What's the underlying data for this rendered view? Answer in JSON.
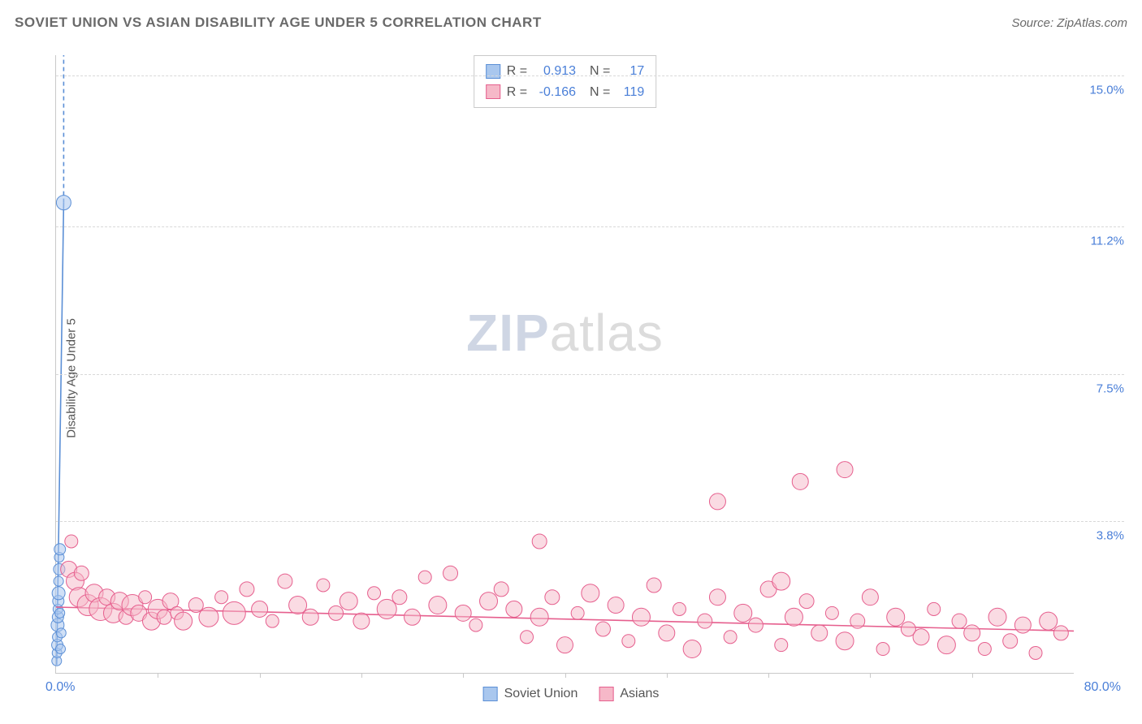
{
  "title": "SOVIET UNION VS ASIAN DISABILITY AGE UNDER 5 CORRELATION CHART",
  "source": "Source: ZipAtlas.com",
  "ylabel": "Disability Age Under 5",
  "watermark_bold": "ZIP",
  "watermark_rest": "atlas",
  "chart": {
    "type": "scatter",
    "background_color": "#ffffff",
    "grid_color": "#d8d8d8",
    "axis_color": "#c9c9c9",
    "tick_label_color": "#4a7fd8",
    "xlim": [
      0,
      80
    ],
    "ylim": [
      0,
      15.5
    ],
    "x_origin_label": "0.0%",
    "x_max_label": "80.0%",
    "y_ticks": [
      {
        "v": 3.8,
        "label": "3.8%"
      },
      {
        "v": 7.5,
        "label": "7.5%"
      },
      {
        "v": 11.2,
        "label": "11.2%"
      },
      {
        "v": 15.0,
        "label": "15.0%"
      }
    ],
    "x_minor_tick_step": 8,
    "series": [
      {
        "name": "Soviet Union",
        "fill": "#a9c7ee",
        "stroke": "#5b8fd6",
        "fill_opacity": 0.55,
        "R": "0.913",
        "N": "17",
        "trend": {
          "x1": 0.05,
          "y1": 0.2,
          "x2": 0.6,
          "y2": 11.8,
          "dashed_extend_y": 15.5,
          "color": "#5b8fd6",
          "width": 1.6
        },
        "points": [
          {
            "x": 0.05,
            "y": 0.3,
            "r": 6
          },
          {
            "x": 0.08,
            "y": 0.5,
            "r": 6
          },
          {
            "x": 0.1,
            "y": 0.7,
            "r": 7
          },
          {
            "x": 0.1,
            "y": 0.9,
            "r": 6
          },
          {
            "x": 0.12,
            "y": 1.2,
            "r": 8
          },
          {
            "x": 0.15,
            "y": 1.4,
            "r": 7
          },
          {
            "x": 0.15,
            "y": 1.6,
            "r": 6
          },
          {
            "x": 0.18,
            "y": 1.8,
            "r": 7
          },
          {
            "x": 0.2,
            "y": 2.0,
            "r": 8
          },
          {
            "x": 0.2,
            "y": 2.3,
            "r": 6
          },
          {
            "x": 0.25,
            "y": 2.6,
            "r": 7
          },
          {
            "x": 0.25,
            "y": 2.9,
            "r": 6
          },
          {
            "x": 0.3,
            "y": 3.1,
            "r": 7
          },
          {
            "x": 0.3,
            "y": 1.5,
            "r": 6
          },
          {
            "x": 0.35,
            "y": 0.6,
            "r": 6
          },
          {
            "x": 0.4,
            "y": 1.0,
            "r": 6
          },
          {
            "x": 0.6,
            "y": 11.8,
            "r": 9
          }
        ]
      },
      {
        "name": "Asians",
        "fill": "#f6b8c8",
        "stroke": "#e65f8e",
        "fill_opacity": 0.5,
        "R": "-0.166",
        "N": "119",
        "trend": {
          "x1": 0,
          "y1": 1.65,
          "x2": 80,
          "y2": 1.05,
          "color": "#e65f8e",
          "width": 1.6
        },
        "points": [
          {
            "x": 1.0,
            "y": 2.6,
            "r": 10
          },
          {
            "x": 1.2,
            "y": 3.3,
            "r": 8
          },
          {
            "x": 1.5,
            "y": 2.3,
            "r": 11
          },
          {
            "x": 1.8,
            "y": 1.9,
            "r": 12
          },
          {
            "x": 2.0,
            "y": 2.5,
            "r": 9
          },
          {
            "x": 2.5,
            "y": 1.7,
            "r": 13
          },
          {
            "x": 3.0,
            "y": 2.0,
            "r": 11
          },
          {
            "x": 3.5,
            "y": 1.6,
            "r": 14
          },
          {
            "x": 4.0,
            "y": 1.9,
            "r": 10
          },
          {
            "x": 4.5,
            "y": 1.5,
            "r": 12
          },
          {
            "x": 5.0,
            "y": 1.8,
            "r": 11
          },
          {
            "x": 5.5,
            "y": 1.4,
            "r": 9
          },
          {
            "x": 6.0,
            "y": 1.7,
            "r": 13
          },
          {
            "x": 6.5,
            "y": 1.5,
            "r": 10
          },
          {
            "x": 7.0,
            "y": 1.9,
            "r": 8
          },
          {
            "x": 7.5,
            "y": 1.3,
            "r": 11
          },
          {
            "x": 8.0,
            "y": 1.6,
            "r": 12
          },
          {
            "x": 8.5,
            "y": 1.4,
            "r": 9
          },
          {
            "x": 9.0,
            "y": 1.8,
            "r": 10
          },
          {
            "x": 9.5,
            "y": 1.5,
            "r": 8
          },
          {
            "x": 10,
            "y": 1.3,
            "r": 11
          },
          {
            "x": 11,
            "y": 1.7,
            "r": 9
          },
          {
            "x": 12,
            "y": 1.4,
            "r": 12
          },
          {
            "x": 13,
            "y": 1.9,
            "r": 8
          },
          {
            "x": 14,
            "y": 1.5,
            "r": 14
          },
          {
            "x": 15,
            "y": 2.1,
            "r": 9
          },
          {
            "x": 16,
            "y": 1.6,
            "r": 10
          },
          {
            "x": 17,
            "y": 1.3,
            "r": 8
          },
          {
            "x": 18,
            "y": 2.3,
            "r": 9
          },
          {
            "x": 19,
            "y": 1.7,
            "r": 11
          },
          {
            "x": 20,
            "y": 1.4,
            "r": 10
          },
          {
            "x": 21,
            "y": 2.2,
            "r": 8
          },
          {
            "x": 22,
            "y": 1.5,
            "r": 9
          },
          {
            "x": 23,
            "y": 1.8,
            "r": 11
          },
          {
            "x": 24,
            "y": 1.3,
            "r": 10
          },
          {
            "x": 25,
            "y": 2.0,
            "r": 8
          },
          {
            "x": 26,
            "y": 1.6,
            "r": 12
          },
          {
            "x": 27,
            "y": 1.9,
            "r": 9
          },
          {
            "x": 28,
            "y": 1.4,
            "r": 10
          },
          {
            "x": 29,
            "y": 2.4,
            "r": 8
          },
          {
            "x": 30,
            "y": 1.7,
            "r": 11
          },
          {
            "x": 31,
            "y": 2.5,
            "r": 9
          },
          {
            "x": 32,
            "y": 1.5,
            "r": 10
          },
          {
            "x": 33,
            "y": 1.2,
            "r": 8
          },
          {
            "x": 34,
            "y": 1.8,
            "r": 11
          },
          {
            "x": 35,
            "y": 2.1,
            "r": 9
          },
          {
            "x": 36,
            "y": 1.6,
            "r": 10
          },
          {
            "x": 37,
            "y": 0.9,
            "r": 8
          },
          {
            "x": 38,
            "y": 1.4,
            "r": 11
          },
          {
            "x": 38,
            "y": 3.3,
            "r": 9
          },
          {
            "x": 39,
            "y": 1.9,
            "r": 9
          },
          {
            "x": 40,
            "y": 0.7,
            "r": 10
          },
          {
            "x": 41,
            "y": 1.5,
            "r": 8
          },
          {
            "x": 42,
            "y": 2.0,
            "r": 11
          },
          {
            "x": 43,
            "y": 1.1,
            "r": 9
          },
          {
            "x": 44,
            "y": 1.7,
            "r": 10
          },
          {
            "x": 45,
            "y": 0.8,
            "r": 8
          },
          {
            "x": 46,
            "y": 1.4,
            "r": 11
          },
          {
            "x": 47,
            "y": 2.2,
            "r": 9
          },
          {
            "x": 48,
            "y": 1.0,
            "r": 10
          },
          {
            "x": 49,
            "y": 1.6,
            "r": 8
          },
          {
            "x": 50,
            "y": 0.6,
            "r": 11
          },
          {
            "x": 51,
            "y": 1.3,
            "r": 9
          },
          {
            "x": 52,
            "y": 1.9,
            "r": 10
          },
          {
            "x": 52,
            "y": 4.3,
            "r": 10
          },
          {
            "x": 53,
            "y": 0.9,
            "r": 8
          },
          {
            "x": 54,
            "y": 1.5,
            "r": 11
          },
          {
            "x": 55,
            "y": 1.2,
            "r": 9
          },
          {
            "x": 56,
            "y": 2.1,
            "r": 10
          },
          {
            "x": 57,
            "y": 0.7,
            "r": 8
          },
          {
            "x": 57,
            "y": 2.3,
            "r": 11
          },
          {
            "x": 58,
            "y": 1.4,
            "r": 11
          },
          {
            "x": 58.5,
            "y": 4.8,
            "r": 10
          },
          {
            "x": 59,
            "y": 1.8,
            "r": 9
          },
          {
            "x": 60,
            "y": 1.0,
            "r": 10
          },
          {
            "x": 61,
            "y": 1.5,
            "r": 8
          },
          {
            "x": 62,
            "y": 0.8,
            "r": 11
          },
          {
            "x": 62,
            "y": 5.1,
            "r": 10
          },
          {
            "x": 63,
            "y": 1.3,
            "r": 9
          },
          {
            "x": 64,
            "y": 1.9,
            "r": 10
          },
          {
            "x": 65,
            "y": 0.6,
            "r": 8
          },
          {
            "x": 66,
            "y": 1.4,
            "r": 11
          },
          {
            "x": 67,
            "y": 1.1,
            "r": 9
          },
          {
            "x": 68,
            "y": 0.9,
            "r": 10
          },
          {
            "x": 69,
            "y": 1.6,
            "r": 8
          },
          {
            "x": 70,
            "y": 0.7,
            "r": 11
          },
          {
            "x": 71,
            "y": 1.3,
            "r": 9
          },
          {
            "x": 72,
            "y": 1.0,
            "r": 10
          },
          {
            "x": 73,
            "y": 0.6,
            "r": 8
          },
          {
            "x": 74,
            "y": 1.4,
            "r": 11
          },
          {
            "x": 75,
            "y": 0.8,
            "r": 9
          },
          {
            "x": 76,
            "y": 1.2,
            "r": 10
          },
          {
            "x": 77,
            "y": 0.5,
            "r": 8
          },
          {
            "x": 78,
            "y": 1.3,
            "r": 11
          },
          {
            "x": 79,
            "y": 1.0,
            "r": 9
          }
        ]
      }
    ],
    "bottom_legend": [
      {
        "label": "Soviet Union",
        "fill": "#a9c7ee",
        "stroke": "#5b8fd6"
      },
      {
        "label": "Asians",
        "fill": "#f6b8c8",
        "stroke": "#e65f8e"
      }
    ]
  }
}
